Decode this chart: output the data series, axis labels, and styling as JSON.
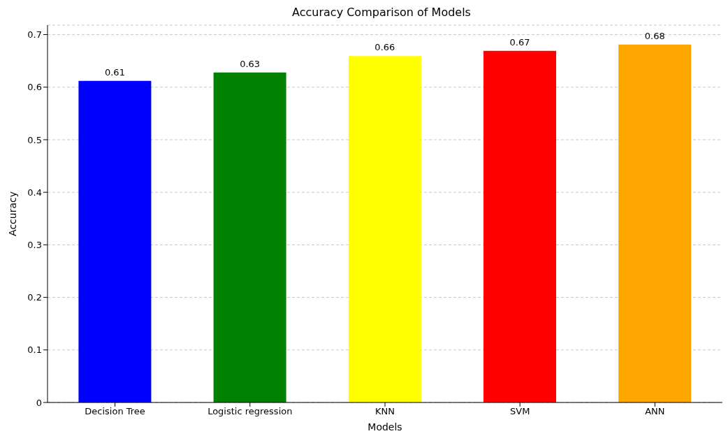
{
  "chart_data": {
    "type": "bar",
    "title": "Accuracy Comparison of Models",
    "xlabel": "Models",
    "ylabel": "Accuracy",
    "categories": [
      "Decision Tree",
      "Logistic regression",
      "KNN",
      "SVM",
      "ANN"
    ],
    "values": [
      0.612,
      0.628,
      0.659,
      0.669,
      0.681
    ],
    "value_labels": [
      "0.61",
      "0.63",
      "0.66",
      "0.67",
      "0.68"
    ],
    "colors": [
      "#0000ff",
      "#008000",
      "#ffff00",
      "#ff0000",
      "#ffa500"
    ],
    "ylim": [
      0,
      0.718
    ],
    "yticks": [
      0,
      0.1,
      0.2,
      0.3,
      0.4,
      0.5,
      0.6,
      0.7
    ],
    "grid": "y",
    "legend": false
  }
}
